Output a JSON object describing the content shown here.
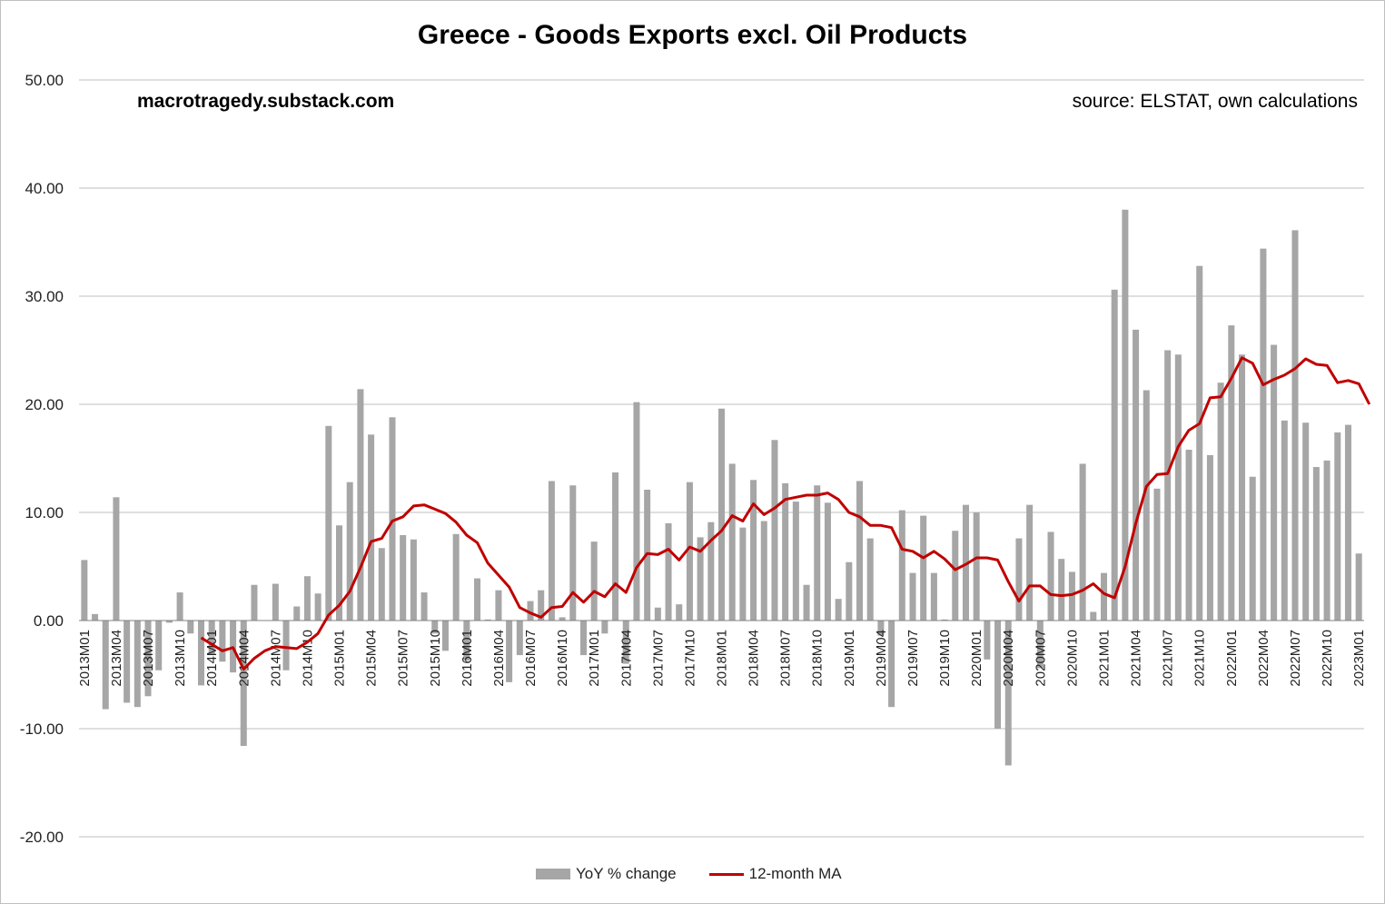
{
  "title": "Greece - Goods Exports excl. Oil Products",
  "annotation_left": "macrotragedy.substack.com",
  "annotation_right": "source: ELSTAT, own calculations",
  "legend": {
    "bar_label": "YoY % change",
    "line_label": "12-month MA"
  },
  "colors": {
    "bar": "#a6a6a6",
    "line": "#c00000",
    "grid": "#bfbfbf"
  },
  "chart_data": {
    "type": "bar",
    "title": "Greece - Goods Exports excl. Oil Products",
    "ylim": [
      -20,
      50
    ],
    "yticks": [
      "-20.00",
      "-10.00",
      "0.00",
      "10.00",
      "20.00",
      "30.00",
      "40.00",
      "50.00"
    ],
    "grid": true,
    "legend_position": "bottom",
    "x_tick_labels": [
      "2013M01",
      "2013M04",
      "2013M07",
      "2013M10",
      "2014M01",
      "2014M04",
      "2014M07",
      "2014M10",
      "2015M01",
      "2015M04",
      "2015M07",
      "2015M10",
      "2016M01",
      "2016M04",
      "2016M07",
      "2016M10",
      "2017M01",
      "2017M04",
      "2017M07",
      "2017M10",
      "2018M01",
      "2018M04",
      "2018M07",
      "2018M10",
      "2019M01",
      "2019M04",
      "2019M07",
      "2019M10",
      "2020M01",
      "2020M04",
      "2020M07",
      "2020M10",
      "2021M01",
      "2021M04",
      "2021M07",
      "2021M10",
      "2022M01",
      "2022M04",
      "2022M07",
      "2022M10",
      "2023M01"
    ],
    "start_period": "2013M01",
    "series": [
      {
        "name": "YoY % change",
        "type": "bar",
        "values": [
          5.6,
          0.6,
          -8.2,
          11.4,
          -7.6,
          -8.0,
          -7.0,
          -4.6,
          -0.2,
          2.6,
          -1.2,
          -6.0,
          -3.2,
          -3.8,
          -4.8,
          -11.6,
          3.3,
          0,
          3.4,
          -4.6,
          1.3,
          4.1,
          2.5,
          18.0,
          8.8,
          12.8,
          21.4,
          17.2,
          6.7,
          18.8,
          7.9,
          7.5,
          2.6,
          -1.2,
          -2.8,
          8.0,
          -3.7,
          3.9,
          0.1,
          2.8,
          -5.7,
          -3.2,
          1.8,
          2.8,
          12.9,
          0.3,
          12.5,
          -3.2,
          7.3,
          -1.2,
          13.7,
          -4.0,
          20.2,
          12.1,
          1.2,
          9.0,
          1.5,
          12.8,
          7.7,
          9.1,
          19.6,
          14.5,
          8.6,
          13.0,
          9.2,
          16.7,
          12.7,
          11.0,
          3.3,
          12.5,
          10.9,
          2.0,
          5.4,
          12.9,
          7.6,
          -1.4,
          -8.0,
          10.2,
          4.4,
          9.7,
          4.4,
          0.1,
          8.3,
          10.7,
          10.0,
          -3.6,
          -10.0,
          -13.4,
          7.6,
          10.7,
          -4.4,
          8.2,
          5.7,
          4.5,
          14.5,
          0.8,
          4.4,
          30.6,
          38.0,
          26.9,
          21.3,
          12.2,
          25.0,
          24.6,
          15.8,
          32.8,
          15.3,
          22.0,
          27.3,
          24.6,
          13.3,
          34.4,
          25.5,
          18.5,
          36.1,
          18.3,
          14.2,
          14.8,
          17.4,
          18.1,
          6.2
        ]
      },
      {
        "name": "12-month MA",
        "type": "line",
        "values": [
          null,
          null,
          null,
          null,
          null,
          null,
          null,
          null,
          null,
          null,
          null,
          -1.6,
          -2.2,
          -2.8,
          -2.5,
          -4.5,
          -3.5,
          -2.8,
          -2.4,
          -2.5,
          -2.6,
          -2.0,
          -1.2,
          0.5,
          1.4,
          2.7,
          4.9,
          7.3,
          7.6,
          9.2,
          9.6,
          10.6,
          10.7,
          10.3,
          9.9,
          9.1,
          7.9,
          7.2,
          5.3,
          4.2,
          3.1,
          1.2,
          0.7,
          0.3,
          1.2,
          1.3,
          2.6,
          1.7,
          2.7,
          2.2,
          3.4,
          2.6,
          4.9,
          6.2,
          6.1,
          6.6,
          5.6,
          6.8,
          6.4,
          7.4,
          8.3,
          9.7,
          9.2,
          10.8,
          9.8,
          10.4,
          11.2,
          11.4,
          11.6,
          11.6,
          11.8,
          11.2,
          10.0,
          9.6,
          8.8,
          8.8,
          8.6,
          6.6,
          6.4,
          5.8,
          6.4,
          5.7,
          4.7,
          5.2,
          5.8,
          5.8,
          5.6,
          3.6,
          1.8,
          3.2,
          3.2,
          2.4,
          2.3,
          2.4,
          2.8,
          3.4,
          2.5,
          2.1,
          5.0,
          9.0,
          12.4,
          13.5,
          13.6,
          16.1,
          17.6,
          18.2,
          20.6,
          20.7,
          22.4,
          24.3,
          23.8,
          21.8,
          22.3,
          22.7,
          23.3,
          24.2,
          23.7,
          23.6,
          22.0,
          22.2,
          21.9,
          20.0
        ]
      }
    ]
  }
}
